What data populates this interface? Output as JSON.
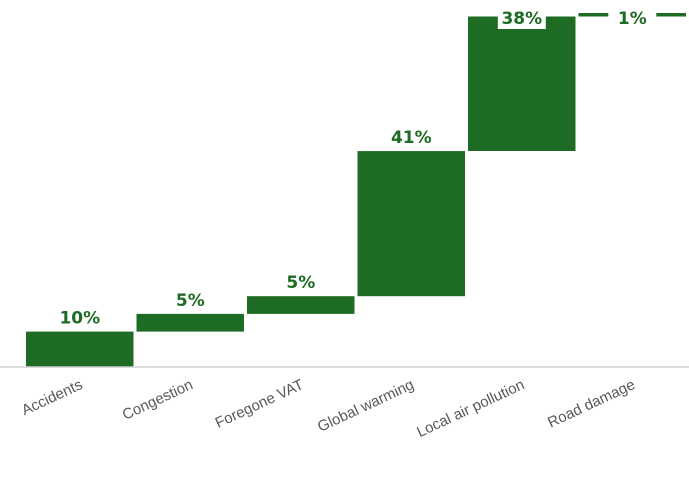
{
  "chart_data": {
    "type": "bar",
    "subtype": "waterfall",
    "title": "",
    "xlabel": "",
    "ylabel": "",
    "categories": [
      "Accidents",
      "Congestion",
      "Foregone VAT",
      "Global warming",
      "Local air pollution",
      "Road damage"
    ],
    "values": [
      10,
      5,
      5,
      41,
      38,
      1
    ],
    "data_labels": [
      "10%",
      "5%",
      "5%",
      "41%",
      "38%",
      "1%"
    ],
    "ylim": [
      0,
      100
    ],
    "y_axis_visible": false,
    "grid": false,
    "legend": "none",
    "bar_color": "#1e6b24",
    "label_color": "#1e6b24",
    "axis_color": "#d0d0d0",
    "tick_label_color": "#595959"
  }
}
